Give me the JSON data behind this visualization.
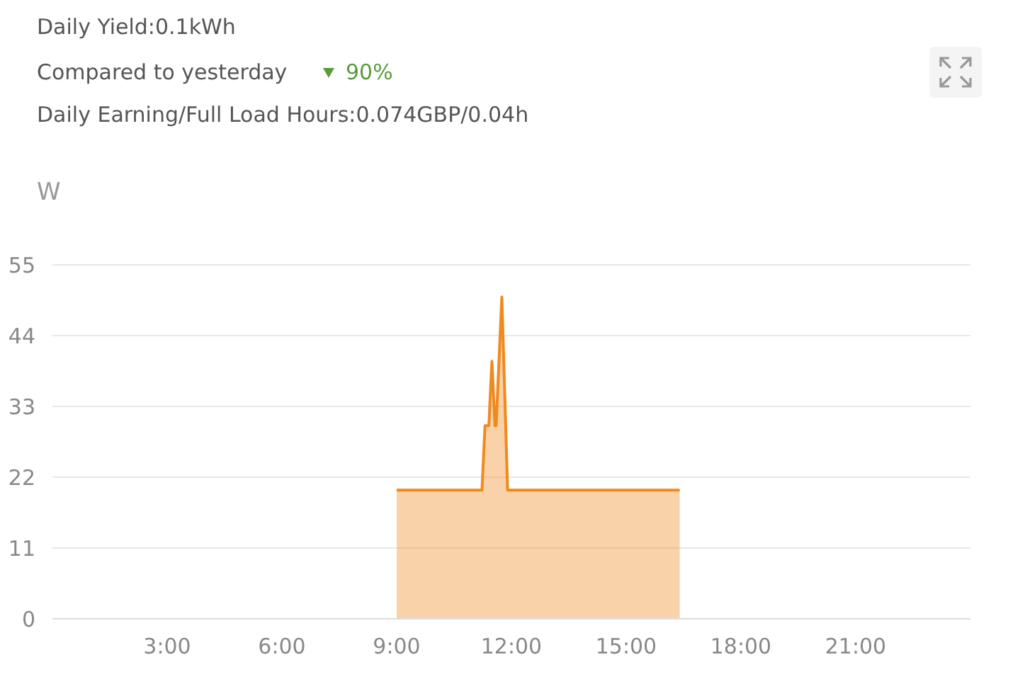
{
  "chart_data": {
    "type": "area",
    "title": "Daily Yield:0.1kWh",
    "annotations": [
      "Compared to yesterday",
      "90%",
      "Daily Earning/Full Load Hours:0.074GBP/0.04h"
    ],
    "ylabel": "W",
    "x": [
      9,
      11.23,
      11.31,
      11.41,
      11.49,
      11.57,
      11.6,
      11.75,
      11.9,
      16.4
    ],
    "series": [
      {
        "color": "#f0891e",
        "values": [
          20,
          20,
          30,
          30,
          40,
          30,
          30,
          50,
          20,
          20
        ]
      }
    ],
    "xlim": [
      0,
      24
    ],
    "xticks": [
      {
        "value": 3,
        "label": "3:00"
      },
      {
        "value": 6,
        "label": "6:00"
      },
      {
        "value": 9,
        "label": "9:00"
      },
      {
        "value": 12,
        "label": "12:00"
      },
      {
        "value": 15,
        "label": "15:00"
      },
      {
        "value": 18,
        "label": "18:00"
      },
      {
        "value": 21,
        "label": "21:00"
      }
    ],
    "ylim": [
      0,
      55
    ],
    "yticks": [
      0,
      11,
      22,
      33,
      44,
      55
    ],
    "grid": "y"
  }
}
